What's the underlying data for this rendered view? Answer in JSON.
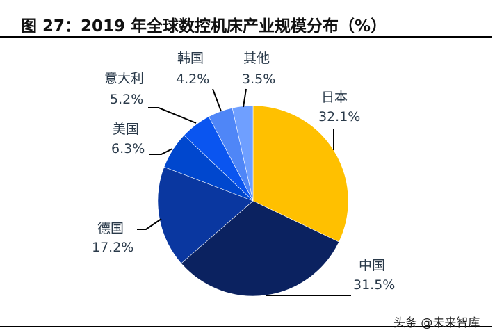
{
  "title": "图 27：2019 年全球数控机床产业规模分布（%）",
  "watermark": "头条 @未来智库",
  "chart_data": {
    "type": "pie",
    "title": "图 27：2019 年全球数控机床产业规模分布（%）",
    "unit": "%",
    "start": "top, clockwise",
    "slices": [
      {
        "label": "日本",
        "value": 32.1,
        "value_label": "32.1%",
        "color": "#FFC000"
      },
      {
        "label": "中国",
        "value": 31.5,
        "value_label": "31.5%",
        "color": "#0B2260"
      },
      {
        "label": "德国",
        "value": 17.2,
        "value_label": "17.2%",
        "color": "#0A37A0"
      },
      {
        "label": "美国",
        "value": 6.3,
        "value_label": "6.3%",
        "color": "#0047CE"
      },
      {
        "label": "意大利",
        "value": 5.2,
        "value_label": "5.2%",
        "color": "#0A55F0"
      },
      {
        "label": "韩国",
        "value": 4.2,
        "value_label": "4.2%",
        "color": "#4F86F7"
      },
      {
        "label": "其他",
        "value": 3.5,
        "value_label": "3.5%",
        "color": "#6F9FFF"
      }
    ]
  }
}
